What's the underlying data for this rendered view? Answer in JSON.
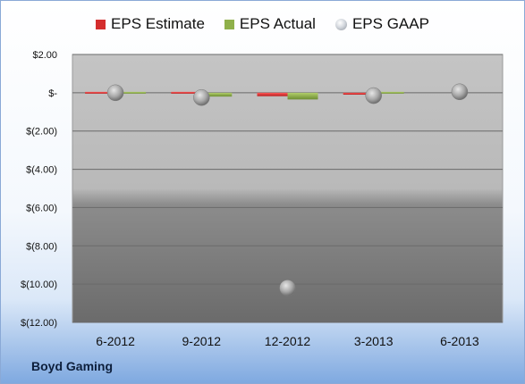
{
  "chart_data": {
    "type": "bar",
    "title": "",
    "xlabel": "",
    "ylabel": "",
    "categories": [
      "6-2012",
      "9-2012",
      "12-2012",
      "3-2013",
      "6-2013"
    ],
    "ylim": [
      -12,
      2
    ],
    "yticks": [
      2,
      0,
      -2,
      -4,
      -6,
      -8,
      -10,
      -12
    ],
    "ytick_labels": [
      "$2.00",
      "$-",
      "$(2.00)",
      "$(4.00)",
      "$(6.00)",
      "$(8.00)",
      "$(10.00)",
      "$(12.00)"
    ],
    "grid": true,
    "legend": "top",
    "series": [
      {
        "name": "EPS Estimate",
        "kind": "bar",
        "color": "#d42d2d",
        "values": [
          0.05,
          -0.04,
          -0.18,
          -0.1,
          null
        ]
      },
      {
        "name": "EPS Actual",
        "kind": "bar",
        "color": "#8fb04a",
        "values": [
          0.0,
          -0.2,
          -0.35,
          -0.02,
          null
        ]
      },
      {
        "name": "EPS GAAP",
        "kind": "marker",
        "color": "#b8bdc4",
        "values": [
          0.0,
          -0.25,
          -10.2,
          -0.15,
          0.05
        ]
      }
    ]
  },
  "footer": {
    "company": "Boyd Gaming"
  }
}
